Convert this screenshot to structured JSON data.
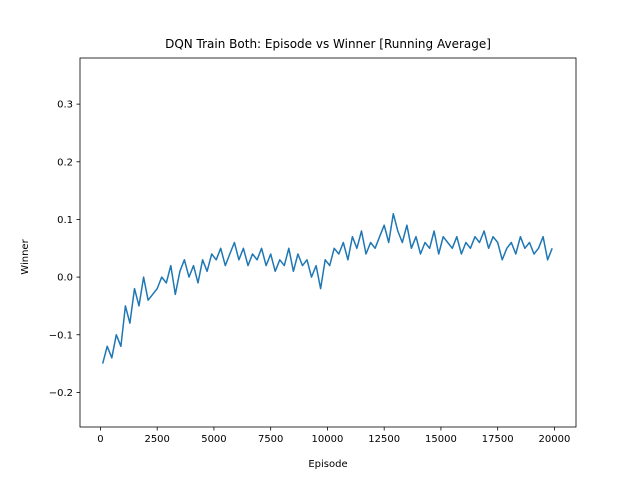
{
  "chart_data": {
    "type": "line",
    "title": "DQN Train Both: Episode vs Winner [Running Average]",
    "xlabel": "Episode",
    "ylabel": "Winner",
    "xlim": [
      -900,
      20950
    ],
    "ylim": [
      -0.26,
      0.38
    ],
    "xticks": [
      0,
      2500,
      5000,
      7500,
      10000,
      12500,
      15000,
      17500,
      20000
    ],
    "xtick_labels": [
      "0",
      "2500",
      "5000",
      "7500",
      "10000",
      "12500",
      "15000",
      "17500",
      "20000"
    ],
    "yticks": [
      -0.2,
      -0.1,
      0.0,
      0.1,
      0.2,
      0.3
    ],
    "ytick_labels": [
      "−0.2",
      "−0.1",
      "0.0",
      "0.1",
      "0.2",
      "0.3"
    ],
    "grid": false,
    "legend": "none",
    "line_color": "#1f77b4",
    "series": [
      {
        "x": [
          100,
          300,
          500,
          700,
          900,
          1100,
          1300,
          1500,
          1700,
          1900,
          2100,
          2300,
          2500,
          2700,
          2900,
          3100,
          3300,
          3500,
          3700,
          3900,
          4100,
          4300,
          4500,
          4700,
          4900,
          5100,
          5300,
          5500,
          5700,
          5900,
          6100,
          6300,
          6500,
          6700,
          6900,
          7100,
          7300,
          7500,
          7700,
          7900,
          8100,
          8300,
          8500,
          8700,
          8900,
          9100,
          9300,
          9500,
          9700,
          9900,
          10100,
          10300,
          10500,
          10700,
          10900,
          11100,
          11300,
          11500,
          11700,
          11900,
          12100,
          12300,
          12500,
          12700,
          12900,
          13100,
          13300,
          13500,
          13700,
          13900,
          14100,
          14300,
          14500,
          14700,
          14900,
          15100,
          15300,
          15500,
          15700,
          15900,
          16100,
          16300,
          16500,
          16700,
          16900,
          17100,
          17300,
          17500,
          17700,
          17900,
          18100,
          18300,
          18500,
          18700,
          18900,
          19100,
          19300,
          19500,
          19700,
          19900
        ],
        "values": [
          -0.15,
          -0.12,
          -0.14,
          -0.1,
          -0.12,
          -0.05,
          -0.08,
          -0.02,
          -0.05,
          0.0,
          -0.04,
          -0.03,
          -0.02,
          0.0,
          -0.01,
          0.02,
          -0.03,
          0.01,
          0.03,
          0.0,
          0.02,
          -0.01,
          0.03,
          0.01,
          0.04,
          0.03,
          0.05,
          0.02,
          0.04,
          0.06,
          0.03,
          0.05,
          0.02,
          0.04,
          0.03,
          0.05,
          0.02,
          0.04,
          0.01,
          0.03,
          0.02,
          0.05,
          0.01,
          0.04,
          0.02,
          0.03,
          0.0,
          0.02,
          -0.02,
          0.03,
          0.02,
          0.05,
          0.04,
          0.06,
          0.03,
          0.07,
          0.05,
          0.08,
          0.04,
          0.06,
          0.05,
          0.07,
          0.09,
          0.06,
          0.11,
          0.08,
          0.06,
          0.09,
          0.05,
          0.07,
          0.04,
          0.06,
          0.05,
          0.08,
          0.04,
          0.07,
          0.06,
          0.05,
          0.07,
          0.04,
          0.06,
          0.05,
          0.07,
          0.06,
          0.08,
          0.05,
          0.07,
          0.06,
          0.03,
          0.05,
          0.06,
          0.04,
          0.07,
          0.05,
          0.06,
          0.04,
          0.05,
          0.07,
          0.03,
          0.05
        ]
      }
    ]
  }
}
